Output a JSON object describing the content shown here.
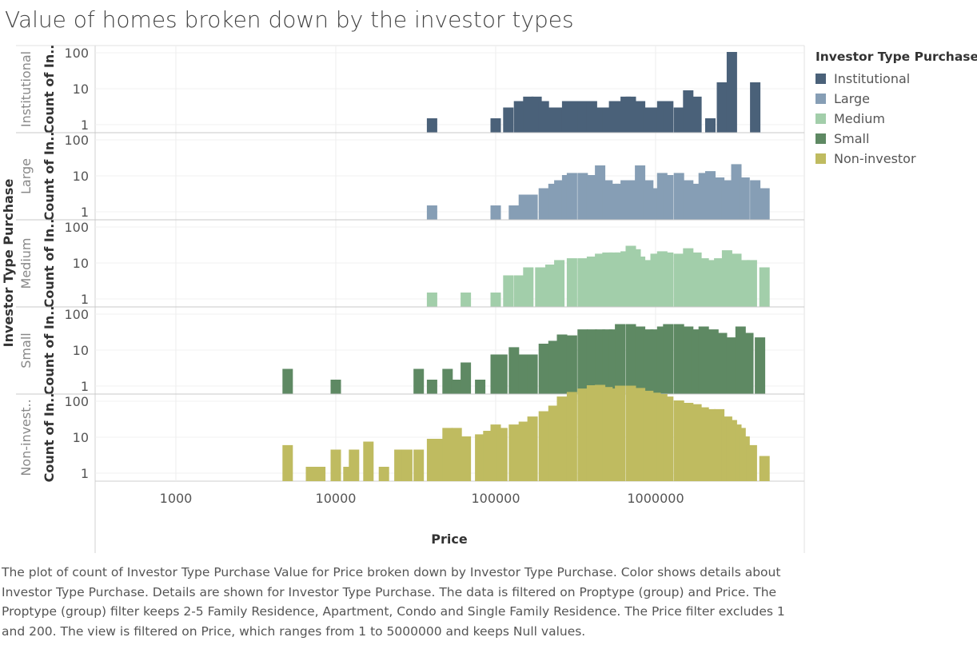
{
  "title": "Value of homes broken down by the investor types",
  "caption": "The plot of count of Investor Type Purchase Value for Price broken down by Investor Type Purchase.  Color shows details about Investor Type Purchase.  Details are shown for Investor Type Purchase. The data is filtered on Proptype (group) and Price. The Proptype (group) filter keeps 2-5 Family Residence, Apartment, Condo and Single Family Residence. The Price filter excludes 1 and 200. The view is filtered on Price, which ranges from 1 to 5000000 and keeps Null values.",
  "legend": {
    "title": "Investor Type Purchase",
    "items": [
      {
        "label": "Institutional",
        "color": "#4a6179"
      },
      {
        "label": "Large",
        "color": "#869eb5"
      },
      {
        "label": "Medium",
        "color": "#a2ceaa"
      },
      {
        "label": "Small",
        "color": "#5e8963"
      },
      {
        "label": "Non-investor",
        "color": "#bfbb60"
      }
    ]
  },
  "chart_data": {
    "type": "bar",
    "title": "Value of homes broken down by the investor types",
    "xlabel": "Price",
    "x_scale": "log",
    "x_ticks": [
      "1000",
      "10000",
      "100000",
      "1000000"
    ],
    "row_axis_title": "Investor Type Purchase",
    "ylabel": "Count of In..",
    "y_scale": "log",
    "y_ticks": [
      "1",
      "10",
      "100"
    ],
    "panels": [
      {
        "name": "Institutional",
        "row_label": "Institutional",
        "color": "#4a6179",
        "x": [
          40000,
          100000,
          120000,
          140000,
          160000,
          180000,
          200000,
          220000,
          250000,
          280000,
          320000,
          350000,
          400000,
          450000,
          500000,
          550000,
          600000,
          650000,
          700000,
          800000,
          900000,
          1000000,
          1100000,
          1200000,
          1400000,
          1600000,
          1800000,
          2200000,
          2600000,
          3000000,
          4200000
        ],
        "values": [
          1,
          1,
          2,
          3,
          4,
          4,
          3,
          2,
          2,
          3,
          3,
          3,
          3,
          2,
          2,
          3,
          3,
          4,
          4,
          3,
          2,
          2,
          3,
          3,
          2,
          6,
          4,
          1,
          10,
          70,
          10
        ]
      },
      {
        "name": "Large",
        "row_label": "Large",
        "color": "#869eb5",
        "x": [
          40000,
          100000,
          130000,
          150000,
          170000,
          200000,
          230000,
          250000,
          280000,
          300000,
          350000,
          400000,
          450000,
          500000,
          550000,
          600000,
          650000,
          700000,
          800000,
          900000,
          1000000,
          1100000,
          1200000,
          1400000,
          1600000,
          1800000,
          2000000,
          2200000,
          2500000,
          2800000,
          3200000,
          3600000,
          4200000,
          4800000
        ],
        "values": [
          1,
          1,
          1,
          2,
          2,
          3,
          4,
          5,
          7,
          8,
          8,
          7,
          13,
          5,
          4,
          4,
          5,
          5,
          13,
          5,
          3,
          8,
          7,
          8,
          5,
          4,
          8,
          9,
          6,
          5,
          14,
          6,
          5,
          3
        ]
      },
      {
        "name": "Medium",
        "row_label": "Medium",
        "color": "#a2ceaa",
        "x": [
          40000,
          65000,
          100000,
          120000,
          140000,
          160000,
          190000,
          220000,
          250000,
          300000,
          350000,
          400000,
          450000,
          500000,
          550000,
          600000,
          650000,
          700000,
          750000,
          800000,
          900000,
          1000000,
          1100000,
          1200000,
          1400000,
          1600000,
          1800000,
          2000000,
          2200000,
          2500000,
          2800000,
          3200000,
          3600000,
          4000000,
          4800000
        ],
        "values": [
          1,
          1,
          1,
          3,
          3,
          5,
          5,
          6,
          8,
          9,
          9,
          10,
          12,
          13,
          13,
          13,
          14,
          20,
          16,
          10,
          8,
          12,
          14,
          13,
          12,
          17,
          13,
          9,
          8,
          9,
          15,
          12,
          8,
          8,
          5
        ]
      },
      {
        "name": "Small",
        "row_label": "Small",
        "color": "#5e8963",
        "x": [
          5000,
          10000,
          33000,
          40000,
          50000,
          57000,
          65000,
          80000,
          100000,
          110000,
          130000,
          150000,
          170000,
          200000,
          230000,
          260000,
          300000,
          350000,
          400000,
          450000,
          500000,
          550000,
          600000,
          700000,
          800000,
          900000,
          1000000,
          1100000,
          1200000,
          1400000,
          1600000,
          1800000,
          2000000,
          2300000,
          2600000,
          3000000,
          3400000,
          3800000,
          4500000
        ],
        "values": [
          2,
          1,
          2,
          1,
          2,
          1,
          3,
          1,
          5,
          5,
          8,
          5,
          5,
          10,
          12,
          18,
          17,
          25,
          25,
          25,
          25,
          25,
          35,
          35,
          30,
          25,
          25,
          30,
          35,
          35,
          30,
          25,
          30,
          25,
          20,
          15,
          30,
          20,
          15
        ]
      },
      {
        "name": "Non-investor",
        "row_label": "Non-invest..",
        "color": "#bfbb60",
        "x": [
          5000,
          7000,
          8000,
          10000,
          12000,
          13000,
          16000,
          20000,
          25000,
          28000,
          33000,
          40000,
          45000,
          50000,
          57000,
          65000,
          80000,
          90000,
          100000,
          110000,
          130000,
          150000,
          170000,
          200000,
          230000,
          260000,
          300000,
          350000,
          400000,
          450000,
          500000,
          550000,
          600000,
          700000,
          800000,
          900000,
          1000000,
          1100000,
          1200000,
          1400000,
          1600000,
          1800000,
          2000000,
          2200000,
          2500000,
          2800000,
          3000000,
          3200000,
          3400000,
          3600000,
          4000000,
          4800000
        ],
        "values": [
          4,
          1,
          1,
          3,
          1,
          3,
          5,
          1,
          3,
          3,
          3,
          6,
          6,
          12,
          12,
          7,
          8,
          10,
          15,
          12,
          15,
          18,
          25,
          35,
          50,
          90,
          120,
          150,
          185,
          190,
          165,
          150,
          180,
          180,
          155,
          130,
          115,
          105,
          90,
          70,
          60,
          55,
          45,
          40,
          40,
          25,
          20,
          15,
          12,
          7,
          4,
          2
        ]
      }
    ]
  }
}
